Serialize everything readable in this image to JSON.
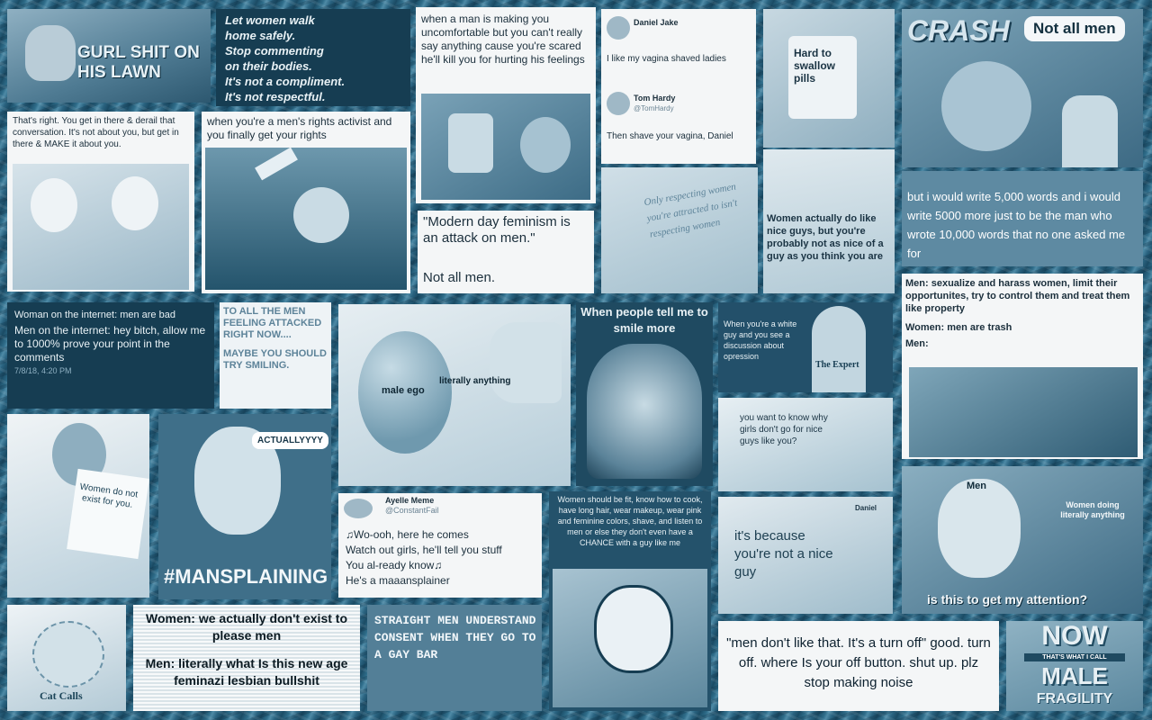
{
  "tiles": {
    "lawn": {
      "text": "GURL SHIT ON HIS LAWN"
    },
    "women_walk": {
      "lines": [
        "Let women walk",
        "home safely.",
        "Stop commenting",
        "on their bodies.",
        "It's not a compliment.",
        "It's not respectful."
      ]
    },
    "uncomfortable": {
      "text": "when a man is making you uncomfortable but you can't really say anything cause you're scared he'll kill you for hurting his feelings"
    },
    "tweet_daniel": {
      "name1": "Daniel Jake",
      "text1": "I like my vagina shaved ladies",
      "name2": "Tom Hardy",
      "handle2": "@TomHardy",
      "text2": "Then shave your vagina, Daniel"
    },
    "pills": {
      "text": "Hard to swallow pills"
    },
    "crash": {
      "brand": "CRASH",
      "bubble": "Not all men"
    },
    "derail": {
      "text": "That's right. You get in there & derail that conversation. It's not about you, but get in there & MAKE it about you."
    },
    "mra": {
      "text": "when you're a men's rights activist and you finally get your rights"
    },
    "modern_day": {
      "quote": "\"Modern day feminism is an attack on men.\"",
      "answer": "Not all men."
    },
    "only_respecting": {
      "text": "Only respecting women you're attracted to isn't respecting women"
    },
    "nice_guys": {
      "text": "Women actually do like nice guys, but you're probably not as nice of a guy as you think you are"
    },
    "words": {
      "text": "but i would write 5,000 words and i would write 5000 more just to be the man who wrote 10,000 words that no one asked me for"
    },
    "internet": {
      "line1": "Woman on the internet: men are bad",
      "line2": "Men on the internet: hey bitch, allow me to 1000% prove your point in the comments",
      "time": "7/8/18, 4:20 PM"
    },
    "attacked": {
      "line1": "TO ALL THE MEN FEELING ATTACKED RIGHT NOW....",
      "line2": "MAYBE YOU SHOULD TRY SMILING."
    },
    "balloon": {
      "label1": "male ego",
      "label2": "literally anything"
    },
    "smile": {
      "text": "When people tell me to smile more"
    },
    "expert": {
      "text": "When you're a white guy and you see a discussion about opression",
      "shirt": "The Expert"
    },
    "sexualize": {
      "line1": "Men: sexualize and harass women, limit their opportunites, try to control them and treat them like property",
      "line2": "Women: men are trash",
      "line3": "Men:"
    },
    "not_exist": {
      "sign": "Women do not exist for you."
    },
    "actually": {
      "bubble": "ACTUALLYYYY",
      "tag": "#MANSPLAINING"
    },
    "why_girls": {
      "text": "you want to know why girls don't go for nice guys like you?"
    },
    "mansplainer": {
      "name": "Ayelle Meme",
      "handle": "@ConstantFail",
      "lines": [
        "♫Wo-ooh, here he comes",
        "Watch out girls, he'll tell you stuff",
        "You al-ready know♫",
        "He's a maaansplainer"
      ]
    },
    "fit": {
      "text": "Women should be fit, know how to cook, have long hair, wear makeup, wear pink and feminine colors, shave, and listen to men or else they don't even have a CHANCE with a guy like me"
    },
    "because": {
      "name": "Daniel",
      "text": "it's because you're not a nice guy"
    },
    "butterfly": {
      "label_man": "Men",
      "label_item": "Women doing literally anything",
      "caption": "is this to get my attention?"
    },
    "catcalls": {
      "text": "Cat Calls"
    },
    "feminazi": {
      "line1": "Women: we actually don't exist to please men",
      "line2": "Men: literally what Is this new age feminazi lesbian bullshit"
    },
    "consent": {
      "text": "STRAIGHT MEN UNDERSTAND CONSENT WHEN THEY GO TO A GAY BAR"
    },
    "turn_off": {
      "text": "\"men don't like that. It's a turn off\" good. turn off. where Is your off button. shut up. plz stop making noise"
    },
    "fragility": {
      "now": "NOW",
      "middle": "THAT'S WHAT I CALL",
      "male": "MALE",
      "fragility": "FRAGILITY"
    }
  }
}
